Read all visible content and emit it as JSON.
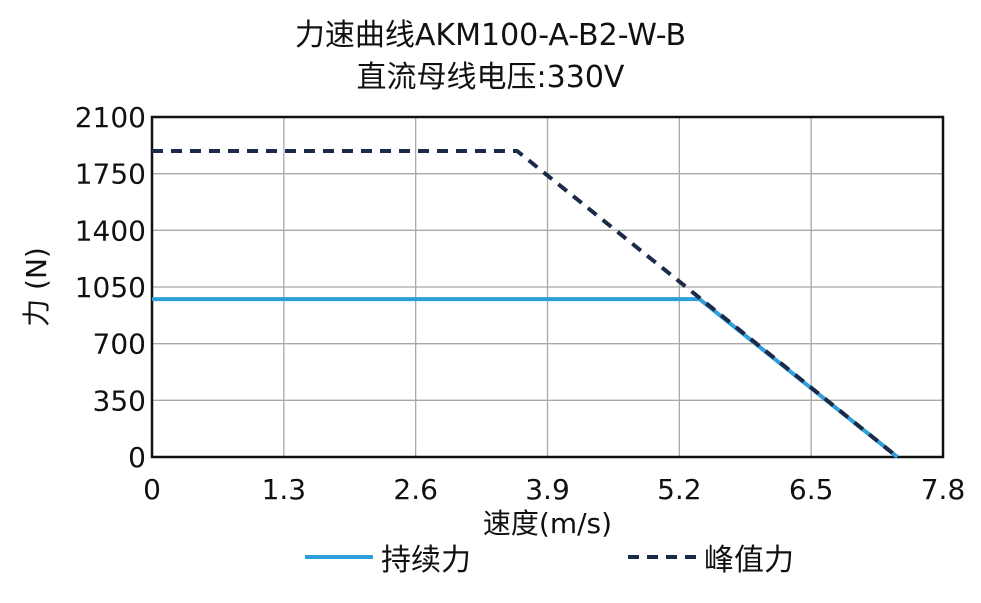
{
  "chart_data": {
    "type": "line",
    "title": "力速曲线AKM100-A-B2-W-B",
    "subtitle": "直流母线电压:330V",
    "xlabel": "速度(m/s)",
    "ylabel": "力 (N)",
    "xlim": [
      0,
      7.8
    ],
    "ylim": [
      0,
      2100
    ],
    "x_ticks": [
      "0",
      "1.3",
      "2.6",
      "3.9",
      "5.2",
      "6.5",
      "7.8"
    ],
    "y_ticks": [
      "0",
      "350",
      "700",
      "1050",
      "1400",
      "1750",
      "2100"
    ],
    "grid": true,
    "legend_position": "bottom",
    "series": [
      {
        "name": "持续力",
        "color": "#2e9fd8",
        "style": "solid",
        "x": [
          0,
          5.4,
          7.35
        ],
        "y": [
          975,
          975,
          0
        ]
      },
      {
        "name": "峰值力",
        "color": "#1c2a4a",
        "style": "dashed",
        "x": [
          0,
          3.6,
          7.35
        ],
        "y": [
          1890,
          1890,
          0
        ]
      }
    ]
  }
}
